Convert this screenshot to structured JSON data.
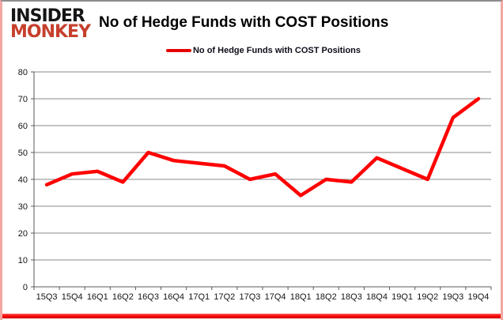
{
  "logo": {
    "line1": "INSIDER",
    "line2": "MONKEY"
  },
  "header": {
    "title": "No of Hedge Funds with COST Positions"
  },
  "legend": {
    "label": "No of Hedge Funds with COST Positions"
  },
  "chart_data": {
    "type": "line",
    "title": "No of Hedge Funds with COST Positions",
    "categories": [
      "15Q3",
      "15Q4",
      "16Q1",
      "16Q2",
      "16Q3",
      "16Q4",
      "17Q1",
      "17Q2",
      "17Q3",
      "17Q4",
      "18Q1",
      "18Q2",
      "18Q3",
      "18Q4",
      "19Q1",
      "19Q2",
      "19Q3",
      "19Q4"
    ],
    "series": [
      {
        "name": "No of Hedge Funds with COST Positions",
        "values": [
          38,
          42,
          43,
          39,
          50,
          47,
          46,
          45,
          40,
          42,
          34,
          40,
          39,
          48,
          44,
          40,
          63,
          70
        ]
      }
    ],
    "xlabel": "",
    "ylabel": "",
    "ylim": [
      0,
      80
    ],
    "ytick_step": 10,
    "grid": true,
    "legend_position": "top"
  },
  "colors": {
    "line": "#fe0000",
    "legend_swatch": "#e60000",
    "logo_red": "#c6402d",
    "grid": "#8a8a8a",
    "axis": "#5a5a5a",
    "tick_label": "#141414",
    "frame_pink": "#f3a7a2",
    "frame_top_gray": "#8c8c8c",
    "bottom_bar_red": "#fb0f0f"
  }
}
